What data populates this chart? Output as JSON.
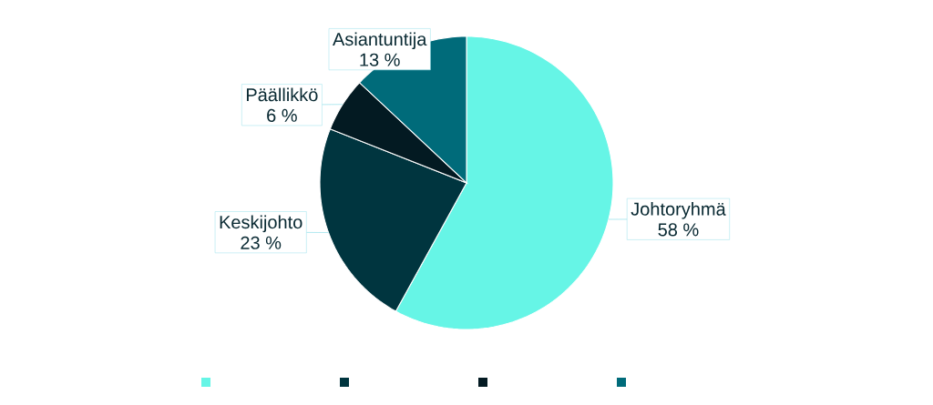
{
  "chart_data": {
    "type": "pie",
    "categories": [
      "Johtoryhmä",
      "Keskijohto",
      "Päällikkö",
      "Asiantuntija"
    ],
    "values": [
      58,
      23,
      6,
      13
    ],
    "value_labels": [
      "58 %",
      "23 %",
      "6 %",
      "13 %"
    ],
    "colors": [
      "#66f5e6",
      "#00353f",
      "#031a22",
      "#006b7a"
    ]
  }
}
